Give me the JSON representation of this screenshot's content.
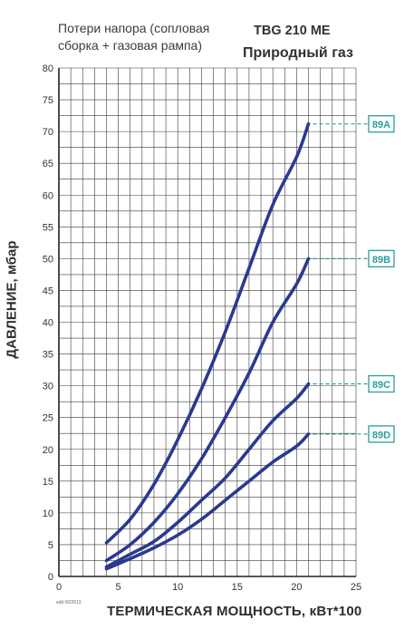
{
  "header": {
    "subtitle": "Потери напора (сопловая\nсборка + газовая рампа)",
    "model": "TBG 210 ME",
    "fuel": "Природный газ"
  },
  "footer_note": "edit 06/2013",
  "colors": {
    "curve": "#2b3990",
    "grid": "#3a3a3a",
    "marker": "#2a9d9b",
    "text": "#333333"
  },
  "chart_data": {
    "type": "line",
    "xlabel": "ТЕРМИЧЕСКАЯ МОЩНОСТЬ, кВт*100",
    "ylabel": "ДАВЛЕНИЕ, мбар",
    "xlim": [
      0,
      25
    ],
    "ylim": [
      0,
      80
    ],
    "xticks": [
      0,
      5,
      10,
      15,
      20,
      25
    ],
    "yticks": [
      0,
      5,
      10,
      15,
      20,
      25,
      30,
      35,
      40,
      45,
      50,
      55,
      60,
      65,
      70,
      75,
      80
    ],
    "grid": true,
    "series": [
      {
        "name": "89A",
        "x": [
          4,
          6,
          8,
          10,
          12,
          14,
          16,
          18,
          20,
          21
        ],
        "y": [
          5.3,
          9.0,
          14.5,
          21.5,
          29.5,
          38.5,
          48.5,
          58.5,
          66.0,
          71.2
        ]
      },
      {
        "name": "89B",
        "x": [
          4,
          6,
          8,
          10,
          12,
          14,
          16,
          18,
          20,
          21
        ],
        "y": [
          2.5,
          5.0,
          8.5,
          13.0,
          18.5,
          25.0,
          32.0,
          40.0,
          46.0,
          50.0
        ]
      },
      {
        "name": "89C",
        "x": [
          4,
          6,
          8,
          10,
          12,
          14,
          16,
          18,
          20,
          21
        ],
        "y": [
          1.5,
          3.5,
          5.5,
          8.5,
          12.0,
          15.5,
          20.0,
          24.5,
          28.0,
          30.3
        ]
      },
      {
        "name": "89D",
        "x": [
          4,
          6,
          8,
          10,
          12,
          14,
          16,
          18,
          20,
          21
        ],
        "y": [
          1.2,
          2.8,
          4.5,
          6.5,
          9.0,
          12.0,
          15.0,
          18.0,
          20.5,
          22.4
        ]
      }
    ]
  }
}
